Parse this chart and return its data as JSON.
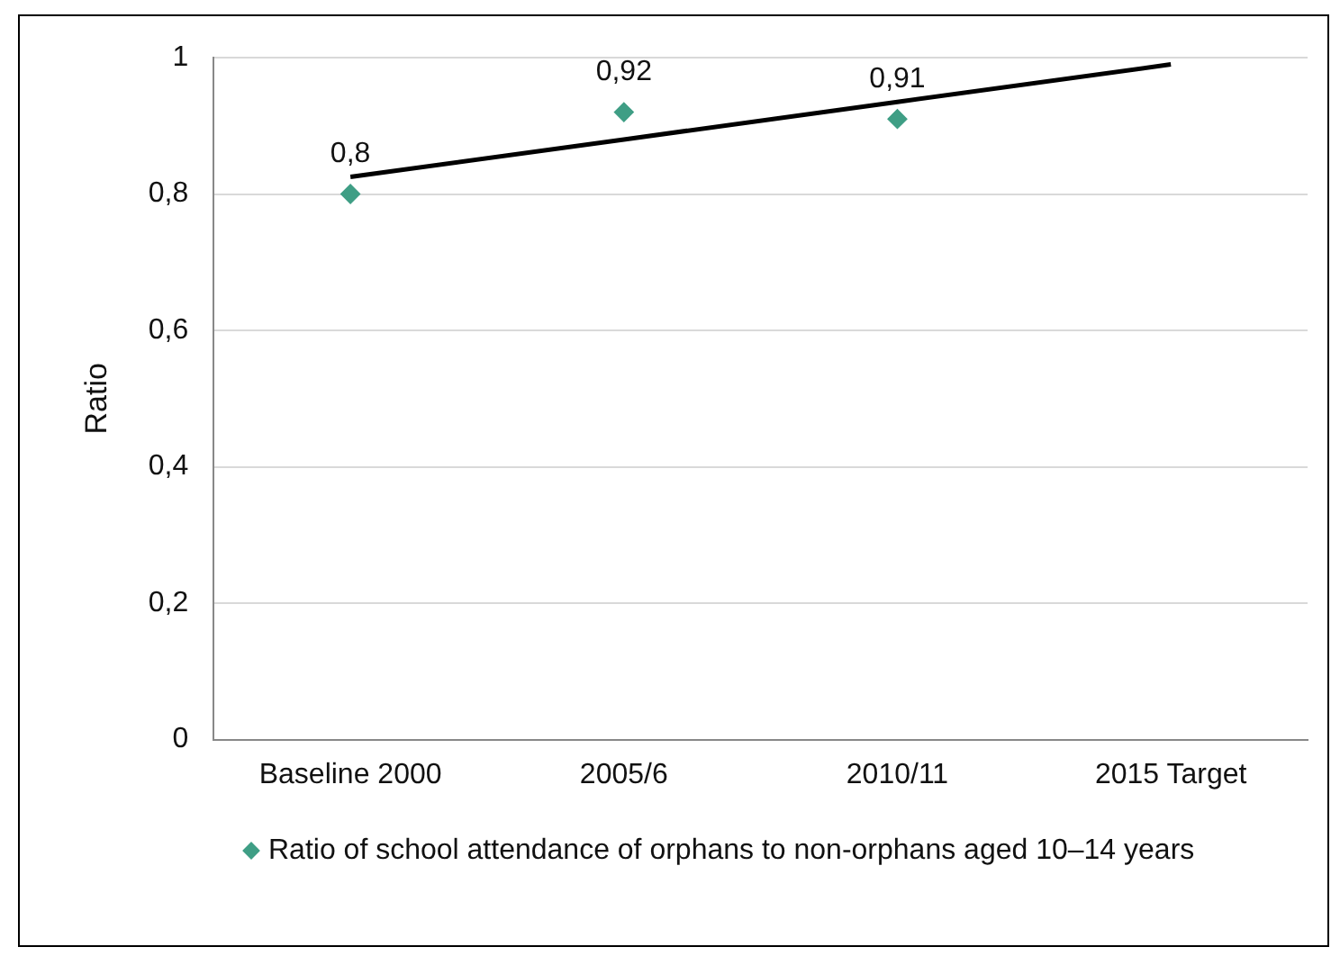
{
  "chart_data": {
    "type": "scatter",
    "ylabel": "Ratio",
    "categories": [
      "Baseline 2000",
      "2005/6",
      "2010/11",
      "2015 Target"
    ],
    "series": [
      {
        "name": "Ratio of school attendance of orphans to non-orphans aged 10–14 years",
        "color": "#3f9e85",
        "marker": "diamond",
        "values": [
          0.8,
          0.92,
          0.91,
          null
        ],
        "value_labels": [
          "0,8",
          "0,92",
          "0,91",
          null
        ]
      },
      {
        "type": "line",
        "color": "#000000",
        "marker": "none",
        "values": [
          0.825,
          0.88,
          0.935,
          0.99
        ]
      }
    ],
    "ylim": [
      0,
      1
    ],
    "yticks": [
      {
        "value": 0,
        "label": "0"
      },
      {
        "value": 0.2,
        "label": "0,2"
      },
      {
        "value": 0.4,
        "label": "0,4"
      },
      {
        "value": 0.6,
        "label": "0,6"
      },
      {
        "value": 0.8,
        "label": "0,8"
      },
      {
        "value": 1,
        "label": "1"
      }
    ],
    "grid": "y",
    "legend": "bottom"
  }
}
